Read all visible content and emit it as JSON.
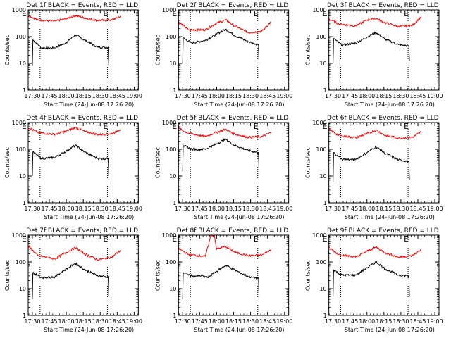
{
  "chart_data": [
    {
      "type": "line",
      "title": "Det 1f BLACK = Events, RED = LLD",
      "xlabel": "Start Time (24-Jun-08 17:26:20)",
      "ylabel": "Counts/sec",
      "yscale": "log",
      "ylim": [
        1,
        1000
      ],
      "xticks": [
        "17:30",
        "17:45",
        "18:00",
        "18:15",
        "18:30",
        "18:45",
        "19:00"
      ],
      "yticks": [
        "1",
        "10",
        "100",
        "1000"
      ],
      "event_markers": [
        "E",
        "E"
      ],
      "series": [
        {
          "color": "#000000",
          "values": [
            {
              "x": 0,
              "y": 8
            },
            {
              "x": 0.5,
              "y": 75
            },
            {
              "x": 8,
              "y": 38
            },
            {
              "x": 20,
              "y": 38
            },
            {
              "x": 30,
              "y": 60
            },
            {
              "x": 38,
              "y": 118
            },
            {
              "x": 46,
              "y": 75
            },
            {
              "x": 58,
              "y": 40
            },
            {
              "x": 67,
              "y": 40
            },
            {
              "x": 67.5,
              "y": 8
            }
          ]
        },
        {
          "color": "#ff0000",
          "values": [
            {
              "x": -5,
              "y": 650
            },
            {
              "x": 5,
              "y": 420
            },
            {
              "x": 20,
              "y": 380
            },
            {
              "x": 30,
              "y": 470
            },
            {
              "x": 38,
              "y": 620
            },
            {
              "x": 46,
              "y": 500
            },
            {
              "x": 58,
              "y": 400
            },
            {
              "x": 70,
              "y": 420
            },
            {
              "x": 78,
              "y": 580
            }
          ]
        }
      ]
    },
    {
      "type": "line",
      "title": "Det 2f BLACK = Events, RED = LLD",
      "xlabel": "Start Time (24-Jun-08 17:26:20)",
      "ylabel": "Counts/sec",
      "yscale": "log",
      "ylim": [
        1,
        1000
      ],
      "xticks": [
        "17:30",
        "17:45",
        "18:00",
        "18:15",
        "18:30",
        "18:45",
        "19:00"
      ],
      "yticks": [
        "1",
        "10",
        "100",
        "1000"
      ],
      "event_markers": [
        "E",
        "E"
      ],
      "series": [
        {
          "color": "#000000",
          "values": [
            {
              "x": 0,
              "y": 10
            },
            {
              "x": 0.5,
              "y": 88
            },
            {
              "x": 8,
              "y": 58
            },
            {
              "x": 20,
              "y": 72
            },
            {
              "x": 30,
              "y": 125
            },
            {
              "x": 38,
              "y": 190
            },
            {
              "x": 46,
              "y": 110
            },
            {
              "x": 58,
              "y": 65
            },
            {
              "x": 67,
              "y": 50
            },
            {
              "x": 67.5,
              "y": 10
            }
          ]
        },
        {
          "color": "#ff0000",
          "values": [
            {
              "x": -5,
              "y": 400
            },
            {
              "x": 5,
              "y": 180
            },
            {
              "x": 20,
              "y": 180
            },
            {
              "x": 30,
              "y": 320
            },
            {
              "x": 38,
              "y": 420
            },
            {
              "x": 46,
              "y": 250
            },
            {
              "x": 58,
              "y": 140
            },
            {
              "x": 70,
              "y": 160
            },
            {
              "x": 78,
              "y": 350
            }
          ]
        }
      ]
    },
    {
      "type": "line",
      "title": "Det 3f BLACK = Events, RED = LLD",
      "xlabel": "Start Time (24-Jun-08 17:26:20)",
      "ylabel": "Counts/sec",
      "yscale": "log",
      "ylim": [
        1,
        1000
      ],
      "xticks": [
        "17:30",
        "17:45",
        "18:00",
        "18:15",
        "18:30",
        "18:45",
        "19:00"
      ],
      "yticks": [
        "1",
        "10",
        "100",
        "1000"
      ],
      "event_markers": [
        "E",
        "E"
      ],
      "series": [
        {
          "color": "#000000",
          "values": [
            {
              "x": 0,
              "y": 10
            },
            {
              "x": 0.5,
              "y": 85
            },
            {
              "x": 8,
              "y": 48
            },
            {
              "x": 20,
              "y": 58
            },
            {
              "x": 30,
              "y": 95
            },
            {
              "x": 38,
              "y": 145
            },
            {
              "x": 46,
              "y": 80
            },
            {
              "x": 58,
              "y": 50
            },
            {
              "x": 67,
              "y": 45
            },
            {
              "x": 67.5,
              "y": 12
            }
          ]
        },
        {
          "color": "#ff0000",
          "values": [
            {
              "x": -5,
              "y": 500
            },
            {
              "x": 5,
              "y": 300
            },
            {
              "x": 20,
              "y": 250
            },
            {
              "x": 30,
              "y": 420
            },
            {
              "x": 38,
              "y": 480
            },
            {
              "x": 46,
              "y": 330
            },
            {
              "x": 58,
              "y": 240
            },
            {
              "x": 70,
              "y": 260
            },
            {
              "x": 78,
              "y": 560
            }
          ]
        }
      ]
    },
    {
      "type": "line",
      "title": "Det 4f BLACK = Events, RED = LLD",
      "xlabel": "Start Time (24-Jun-08 17:26:20)",
      "ylabel": "Counts/sec",
      "yscale": "log",
      "ylim": [
        1,
        1000
      ],
      "xticks": [
        "17:30",
        "17:45",
        "18:00",
        "18:15",
        "18:30",
        "18:45",
        "19:00"
      ],
      "yticks": [
        "1",
        "10",
        "100",
        "1000"
      ],
      "event_markers": [
        "E",
        "E"
      ],
      "series": [
        {
          "color": "#000000",
          "values": [
            {
              "x": 0,
              "y": 10
            },
            {
              "x": 0.5,
              "y": 80
            },
            {
              "x": 8,
              "y": 45
            },
            {
              "x": 20,
              "y": 50
            },
            {
              "x": 30,
              "y": 85
            },
            {
              "x": 38,
              "y": 140
            },
            {
              "x": 46,
              "y": 80
            },
            {
              "x": 58,
              "y": 45
            },
            {
              "x": 67,
              "y": 45
            },
            {
              "x": 67.5,
              "y": 10
            }
          ]
        },
        {
          "color": "#ff0000",
          "values": [
            {
              "x": -5,
              "y": 700
            },
            {
              "x": 5,
              "y": 420
            },
            {
              "x": 20,
              "y": 360
            },
            {
              "x": 30,
              "y": 480
            },
            {
              "x": 38,
              "y": 650
            },
            {
              "x": 46,
              "y": 470
            },
            {
              "x": 58,
              "y": 350
            },
            {
              "x": 70,
              "y": 380
            },
            {
              "x": 78,
              "y": 560
            }
          ]
        }
      ]
    },
    {
      "type": "line",
      "title": "Det 5f BLACK = Events, RED = LLD",
      "xlabel": "Start Time (24-Jun-08 17:26:20)",
      "ylabel": "Counts/sec",
      "yscale": "log",
      "ylim": [
        1,
        1000
      ],
      "xticks": [
        "17:30",
        "17:45",
        "18:00",
        "18:15",
        "18:30",
        "18:45",
        "19:00"
      ],
      "yticks": [
        "1",
        "10",
        "100",
        "1000"
      ],
      "event_markers": [
        "E",
        "E"
      ],
      "series": [
        {
          "color": "#000000",
          "values": [
            {
              "x": 0,
              "y": 15
            },
            {
              "x": 0.5,
              "y": 140
            },
            {
              "x": 8,
              "y": 100
            },
            {
              "x": 20,
              "y": 100
            },
            {
              "x": 30,
              "y": 160
            },
            {
              "x": 38,
              "y": 240
            },
            {
              "x": 46,
              "y": 140
            },
            {
              "x": 58,
              "y": 90
            },
            {
              "x": 67,
              "y": 75
            },
            {
              "x": 67.5,
              "y": 15
            }
          ]
        },
        {
          "color": "#ff0000",
          "values": [
            {
              "x": -5,
              "y": 650
            },
            {
              "x": 5,
              "y": 400
            },
            {
              "x": 20,
              "y": 300
            },
            {
              "x": 30,
              "y": 430
            },
            {
              "x": 38,
              "y": 560
            },
            {
              "x": 46,
              "y": 370
            },
            {
              "x": 58,
              "y": 280
            },
            {
              "x": 70,
              "y": 300
            },
            {
              "x": 78,
              "y": 420
            }
          ]
        }
      ]
    },
    {
      "type": "line",
      "title": "Det 6f BLACK = Events, RED = LLD",
      "xlabel": "Start Time (24-Jun-08 17:26:20)",
      "ylabel": "Counts/sec",
      "yscale": "log",
      "ylim": [
        1,
        1000
      ],
      "xticks": [
        "17:30",
        "17:45",
        "18:00",
        "18:15",
        "18:30",
        "18:45",
        "19:00"
      ],
      "yticks": [
        "1",
        "10",
        "100",
        "1000"
      ],
      "event_markers": [
        "E",
        "E"
      ],
      "series": [
        {
          "color": "#000000",
          "values": [
            {
              "x": 0,
              "y": 6
            },
            {
              "x": 0.5,
              "y": 75
            },
            {
              "x": 8,
              "y": 42
            },
            {
              "x": 20,
              "y": 42
            },
            {
              "x": 30,
              "y": 75
            },
            {
              "x": 38,
              "y": 125
            },
            {
              "x": 46,
              "y": 70
            },
            {
              "x": 58,
              "y": 40
            },
            {
              "x": 67,
              "y": 35
            },
            {
              "x": 67.5,
              "y": 7
            }
          ]
        },
        {
          "color": "#ff0000",
          "values": [
            {
              "x": -5,
              "y": 620
            },
            {
              "x": 5,
              "y": 330
            },
            {
              "x": 20,
              "y": 270
            },
            {
              "x": 30,
              "y": 380
            },
            {
              "x": 38,
              "y": 520
            },
            {
              "x": 46,
              "y": 330
            },
            {
              "x": 58,
              "y": 260
            },
            {
              "x": 70,
              "y": 280
            },
            {
              "x": 78,
              "y": 450
            }
          ]
        }
      ]
    },
    {
      "type": "line",
      "title": "Det 7f BLACK = Events, RED = LLD",
      "xlabel": "Start Time (24-Jun-08 17:26:20)",
      "ylabel": "Counts/sec",
      "yscale": "log",
      "ylim": [
        1,
        1000
      ],
      "xticks": [
        "17:30",
        "17:45",
        "18:00",
        "18:15",
        "18:30",
        "18:45",
        "19:00"
      ],
      "yticks": [
        "1",
        "10",
        "100",
        "1000"
      ],
      "event_markers": [
        "E",
        "E"
      ],
      "series": [
        {
          "color": "#000000",
          "values": [
            {
              "x": 0,
              "y": 4
            },
            {
              "x": 0.5,
              "y": 40
            },
            {
              "x": 8,
              "y": 26
            },
            {
              "x": 20,
              "y": 28
            },
            {
              "x": 30,
              "y": 55
            },
            {
              "x": 38,
              "y": 88
            },
            {
              "x": 46,
              "y": 52
            },
            {
              "x": 58,
              "y": 30
            },
            {
              "x": 67,
              "y": 28
            },
            {
              "x": 67.5,
              "y": 5
            }
          ]
        },
        {
          "color": "#ff0000",
          "values": [
            {
              "x": -5,
              "y": 450
            },
            {
              "x": 5,
              "y": 170
            },
            {
              "x": 20,
              "y": 130
            },
            {
              "x": 30,
              "y": 230
            },
            {
              "x": 38,
              "y": 340
            },
            {
              "x": 46,
              "y": 200
            },
            {
              "x": 58,
              "y": 120
            },
            {
              "x": 70,
              "y": 150
            },
            {
              "x": 78,
              "y": 270
            }
          ]
        }
      ]
    },
    {
      "type": "line",
      "title": "Det 8f BLACK = Events, RED = LLD",
      "xlabel": "Start Time (24-Jun-08 17:26:20)",
      "ylabel": "Counts/sec",
      "yscale": "log",
      "ylim": [
        1,
        1000
      ],
      "xticks": [
        "17:30",
        "17:45",
        "18:00",
        "18:15",
        "18:30",
        "18:45",
        "19:00"
      ],
      "yticks": [
        "1",
        "10",
        "100",
        "1000"
      ],
      "event_markers": [
        "E",
        "E"
      ],
      "series": [
        {
          "color": "#000000",
          "values": [
            {
              "x": 0,
              "y": 4
            },
            {
              "x": 0.5,
              "y": 40
            },
            {
              "x": 8,
              "y": 30
            },
            {
              "x": 18,
              "y": 30
            },
            {
              "x": 22,
              "y": 26
            },
            {
              "x": 30,
              "y": 45
            },
            {
              "x": 38,
              "y": 75
            },
            {
              "x": 46,
              "y": 50
            },
            {
              "x": 58,
              "y": 28
            },
            {
              "x": 67,
              "y": 25
            },
            {
              "x": 67.5,
              "y": 5
            }
          ]
        },
        {
          "color": "#ff0000",
          "values": [
            {
              "x": -5,
              "y": 350
            },
            {
              "x": 5,
              "y": 190
            },
            {
              "x": 20,
              "y": 160
            },
            {
              "x": 25,
              "y": 1000
            },
            {
              "x": 28,
              "y": 1000
            },
            {
              "x": 30,
              "y": 300
            },
            {
              "x": 38,
              "y": 380
            },
            {
              "x": 46,
              "y": 230
            },
            {
              "x": 58,
              "y": 170
            },
            {
              "x": 70,
              "y": 180
            },
            {
              "x": 78,
              "y": 290
            }
          ]
        }
      ]
    },
    {
      "type": "line",
      "title": "Det 9f BLACK = Events, RED = LLD",
      "xlabel": "Start Time (24-Jun-08 17:26:20)",
      "ylabel": "Counts/sec",
      "yscale": "log",
      "ylim": [
        1,
        1000
      ],
      "xticks": [
        "17:30",
        "17:45",
        "18:00",
        "18:15",
        "18:30",
        "18:45",
        "19:00"
      ],
      "yticks": [
        "1",
        "10",
        "100",
        "1000"
      ],
      "event_markers": [
        "E",
        "E"
      ],
      "series": [
        {
          "color": "#000000",
          "values": [
            {
              "x": 0,
              "y": 5
            },
            {
              "x": 0.5,
              "y": 50
            },
            {
              "x": 8,
              "y": 32
            },
            {
              "x": 20,
              "y": 32
            },
            {
              "x": 30,
              "y": 60
            },
            {
              "x": 38,
              "y": 100
            },
            {
              "x": 46,
              "y": 55
            },
            {
              "x": 58,
              "y": 32
            },
            {
              "x": 67,
              "y": 30
            },
            {
              "x": 67.5,
              "y": 5
            }
          ]
        },
        {
          "color": "#ff0000",
          "values": [
            {
              "x": -5,
              "y": 380
            },
            {
              "x": 5,
              "y": 190
            },
            {
              "x": 20,
              "y": 150
            },
            {
              "x": 30,
              "y": 250
            },
            {
              "x": 38,
              "y": 360
            },
            {
              "x": 46,
              "y": 220
            },
            {
              "x": 58,
              "y": 150
            },
            {
              "x": 70,
              "y": 170
            },
            {
              "x": 78,
              "y": 290
            }
          ]
        }
      ]
    }
  ]
}
